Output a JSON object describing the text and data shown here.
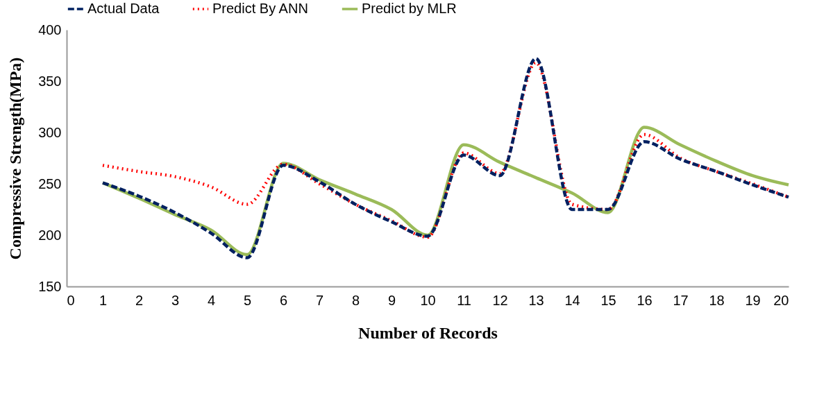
{
  "chart_data": {
    "type": "line",
    "xlabel": "Number of Records",
    "ylabel": "Compressive Strength(MPa)",
    "x": [
      1,
      2,
      3,
      4,
      5,
      6,
      7,
      8,
      9,
      10,
      11,
      12,
      13,
      14,
      15,
      16,
      17,
      18,
      19,
      20
    ],
    "xlim": [
      0,
      20
    ],
    "xticks": [
      0,
      1,
      2,
      3,
      4,
      5,
      6,
      7,
      8,
      9,
      10,
      11,
      12,
      13,
      14,
      15,
      16,
      17,
      18,
      19,
      20
    ],
    "ylim": [
      150,
      400
    ],
    "yticks": [
      150,
      200,
      250,
      300,
      350,
      400
    ],
    "grid": false,
    "legend": "top",
    "marker": "none",
    "series": [
      {
        "name": "Actual Data",
        "color": "#002060",
        "line_style": "dashed",
        "values": [
          251,
          238,
          222,
          202,
          178,
          268,
          252,
          230,
          213,
          199,
          278,
          258,
          372,
          225,
          225,
          291,
          274,
          262,
          249,
          237
        ]
      },
      {
        "name": "Predict By ANN",
        "color": "#ff0000",
        "line_style": "dotted",
        "values": [
          268,
          262,
          257,
          247,
          230,
          269,
          250,
          230,
          214,
          198,
          280,
          260,
          368,
          230,
          225,
          298,
          275,
          262,
          250,
          237
        ]
      },
      {
        "name": "Predict by MLR",
        "color": "#9bbb59",
        "line_style": "solid",
        "values": [
          251,
          236,
          220,
          205,
          181,
          270,
          254,
          240,
          225,
          200,
          288,
          271,
          256,
          241,
          222,
          305,
          288,
          272,
          258,
          249
        ]
      }
    ]
  }
}
